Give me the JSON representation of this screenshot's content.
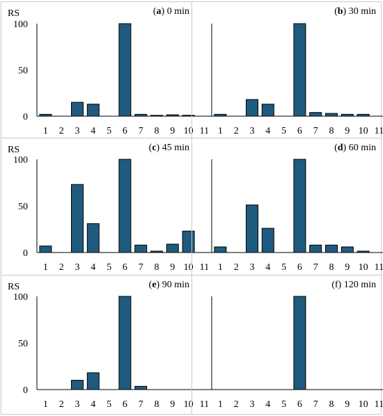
{
  "figure": {
    "bar_color": "#1f5b7e",
    "bar_outline": "#000000",
    "panel_border": "#c8c8c8",
    "categories": [
      "1",
      "2",
      "3",
      "4",
      "5",
      "6",
      "7",
      "8",
      "9",
      "10",
      "11"
    ],
    "ylim": [
      0,
      100
    ],
    "yticks": [
      "0",
      "50",
      "100"
    ]
  },
  "chart_data": [
    {
      "type": "bar",
      "letter": "a",
      "time": "0 min",
      "ylabel": "RS",
      "categories": [
        "1",
        "2",
        "3",
        "4",
        "5",
        "6",
        "7",
        "8",
        "9",
        "10",
        "11"
      ],
      "values": [
        2,
        0,
        15,
        13,
        0,
        100,
        2,
        0.5,
        1.5,
        1,
        0
      ],
      "ylim": [
        0,
        100
      ]
    },
    {
      "type": "bar",
      "letter": "b",
      "time": "30 min",
      "ylabel": "",
      "categories": [
        "1",
        "2",
        "3",
        "4",
        "5",
        "6",
        "7",
        "8",
        "9",
        "10",
        "11"
      ],
      "values": [
        2,
        0,
        18,
        13,
        0,
        100,
        4,
        3,
        2,
        2,
        0
      ],
      "ylim": [
        0,
        100
      ]
    },
    {
      "type": "bar",
      "letter": "c",
      "time": "45 min",
      "ylabel": "RS",
      "categories": [
        "1",
        "2",
        "3",
        "4",
        "5",
        "6",
        "7",
        "8",
        "9",
        "10",
        "11"
      ],
      "values": [
        7,
        0,
        73,
        31,
        0,
        100,
        8,
        1.5,
        9,
        23,
        0
      ],
      "ylim": [
        0,
        100
      ]
    },
    {
      "type": "bar",
      "letter": "d",
      "time": "60 min",
      "ylabel": "",
      "categories": [
        "1",
        "2",
        "3",
        "4",
        "5",
        "6",
        "7",
        "8",
        "9",
        "10",
        "11"
      ],
      "values": [
        6,
        0,
        51,
        26,
        0,
        100,
        8,
        8,
        6,
        1.5,
        0
      ],
      "ylim": [
        0,
        100
      ]
    },
    {
      "type": "bar",
      "letter": "e",
      "time": "90 min",
      "ylabel": "RS",
      "categories": [
        "1",
        "2",
        "3",
        "4",
        "5",
        "6",
        "7",
        "8",
        "9",
        "10",
        "11"
      ],
      "values": [
        0,
        0,
        10,
        18,
        0,
        100,
        3.5,
        0,
        0,
        0,
        0
      ],
      "ylim": [
        0,
        100
      ]
    },
    {
      "type": "bar",
      "letter": "f",
      "time": "120 min",
      "ylabel": "",
      "categories": [
        "1",
        "2",
        "3",
        "4",
        "5",
        "6",
        "7",
        "8",
        "9",
        "10",
        "11"
      ],
      "values": [
        0,
        0,
        0,
        0,
        0,
        100,
        0,
        0,
        0,
        0,
        0
      ],
      "ylim": [
        0,
        100
      ]
    }
  ]
}
